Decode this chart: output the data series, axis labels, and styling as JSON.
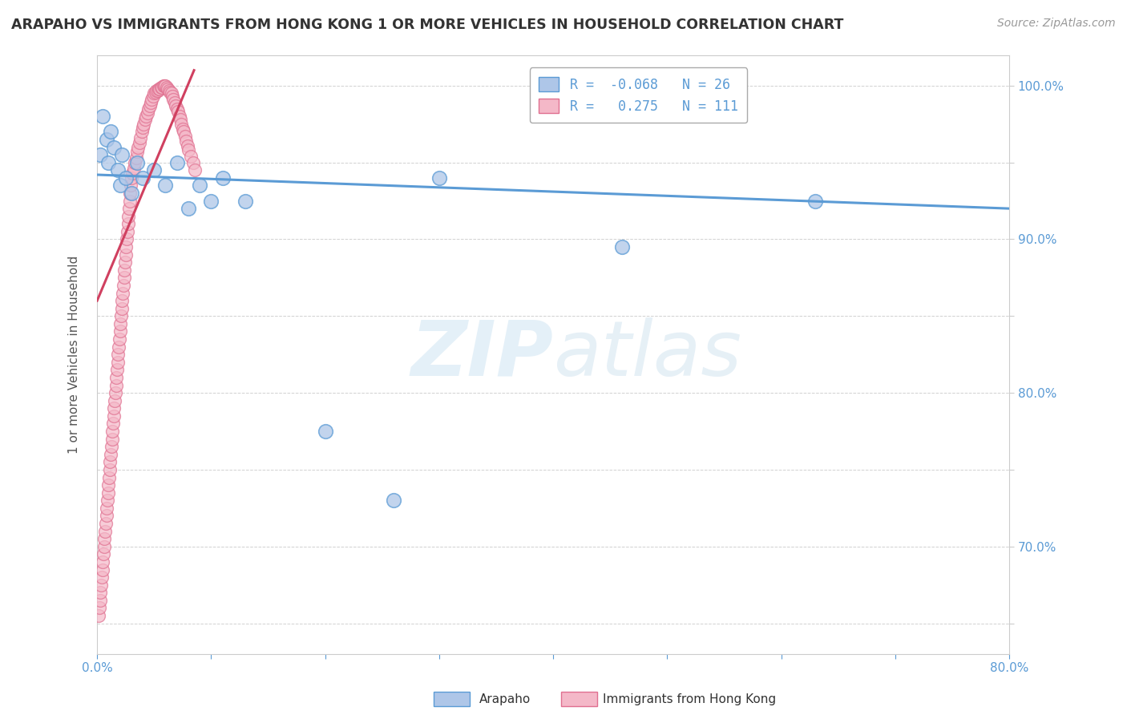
{
  "title": "ARAPAHO VS IMMIGRANTS FROM HONG KONG 1 OR MORE VEHICLES IN HOUSEHOLD CORRELATION CHART",
  "source": "Source: ZipAtlas.com",
  "ylabel": "1 or more Vehicles in Household",
  "xlim": [
    0.0,
    80.0
  ],
  "ylim": [
    63.0,
    102.0
  ],
  "watermark": "ZIPatlas",
  "arapaho_color": "#aec6e8",
  "arapaho_edge": "#5b9bd5",
  "hk_color": "#f4b8c8",
  "hk_edge": "#e07090",
  "trendline_arapaho": "#5b9bd5",
  "trendline_hk": "#d04060",
  "background": "#ffffff",
  "arapaho_x": [
    0.3,
    0.5,
    0.8,
    1.0,
    1.2,
    1.5,
    1.8,
    2.0,
    2.2,
    2.5,
    3.0,
    3.5,
    4.0,
    5.0,
    6.0,
    7.0,
    8.0,
    9.0,
    10.0,
    11.0,
    13.0,
    20.0,
    26.0,
    30.0,
    46.0,
    63.0
  ],
  "arapaho_y": [
    95.5,
    98.0,
    96.5,
    95.0,
    97.0,
    96.0,
    94.5,
    93.5,
    95.5,
    94.0,
    93.0,
    95.0,
    94.0,
    94.5,
    93.5,
    95.0,
    92.0,
    93.5,
    92.5,
    94.0,
    92.5,
    77.5,
    73.0,
    94.0,
    89.5,
    92.5
  ],
  "hk_x": [
    0.15,
    0.2,
    0.25,
    0.3,
    0.35,
    0.4,
    0.45,
    0.5,
    0.55,
    0.6,
    0.65,
    0.7,
    0.75,
    0.8,
    0.85,
    0.9,
    0.95,
    1.0,
    1.05,
    1.1,
    1.15,
    1.2,
    1.25,
    1.3,
    1.35,
    1.4,
    1.45,
    1.5,
    1.55,
    1.6,
    1.65,
    1.7,
    1.75,
    1.8,
    1.85,
    1.9,
    1.95,
    2.0,
    2.05,
    2.1,
    2.15,
    2.2,
    2.25,
    2.3,
    2.35,
    2.4,
    2.45,
    2.5,
    2.55,
    2.6,
    2.65,
    2.7,
    2.75,
    2.8,
    2.85,
    2.9,
    2.95,
    3.0,
    3.1,
    3.2,
    3.3,
    3.4,
    3.5,
    3.6,
    3.7,
    3.8,
    3.9,
    4.0,
    4.1,
    4.2,
    4.3,
    4.4,
    4.5,
    4.6,
    4.7,
    4.8,
    4.9,
    5.0,
    5.1,
    5.2,
    5.3,
    5.4,
    5.5,
    5.6,
    5.7,
    5.8,
    5.9,
    6.0,
    6.1,
    6.2,
    6.3,
    6.4,
    6.5,
    6.6,
    6.7,
    6.8,
    6.9,
    7.0,
    7.1,
    7.2,
    7.3,
    7.4,
    7.5,
    7.6,
    7.7,
    7.8,
    7.9,
    8.0,
    8.2,
    8.4,
    8.6
  ],
  "hk_y": [
    65.5,
    66.0,
    66.5,
    67.0,
    67.5,
    68.0,
    68.5,
    69.0,
    69.5,
    70.0,
    70.5,
    71.0,
    71.5,
    72.0,
    72.5,
    73.0,
    73.5,
    74.0,
    74.5,
    75.0,
    75.5,
    76.0,
    76.5,
    77.0,
    77.5,
    78.0,
    78.5,
    79.0,
    79.5,
    80.0,
    80.5,
    81.0,
    81.5,
    82.0,
    82.5,
    83.0,
    83.5,
    84.0,
    84.5,
    85.0,
    85.5,
    86.0,
    86.5,
    87.0,
    87.5,
    88.0,
    88.5,
    89.0,
    89.5,
    90.0,
    90.5,
    91.0,
    91.5,
    92.0,
    92.5,
    93.0,
    93.5,
    94.0,
    94.3,
    94.6,
    95.0,
    95.3,
    95.7,
    96.0,
    96.3,
    96.6,
    97.0,
    97.3,
    97.5,
    97.8,
    98.0,
    98.2,
    98.5,
    98.7,
    98.9,
    99.1,
    99.3,
    99.5,
    99.6,
    99.7,
    99.7,
    99.8,
    99.8,
    99.9,
    99.9,
    100.0,
    100.0,
    100.0,
    99.9,
    99.8,
    99.7,
    99.6,
    99.5,
    99.3,
    99.1,
    98.9,
    98.7,
    98.5,
    98.3,
    98.0,
    97.8,
    97.5,
    97.2,
    97.0,
    96.7,
    96.4,
    96.1,
    95.8,
    95.4,
    95.0,
    94.5
  ]
}
